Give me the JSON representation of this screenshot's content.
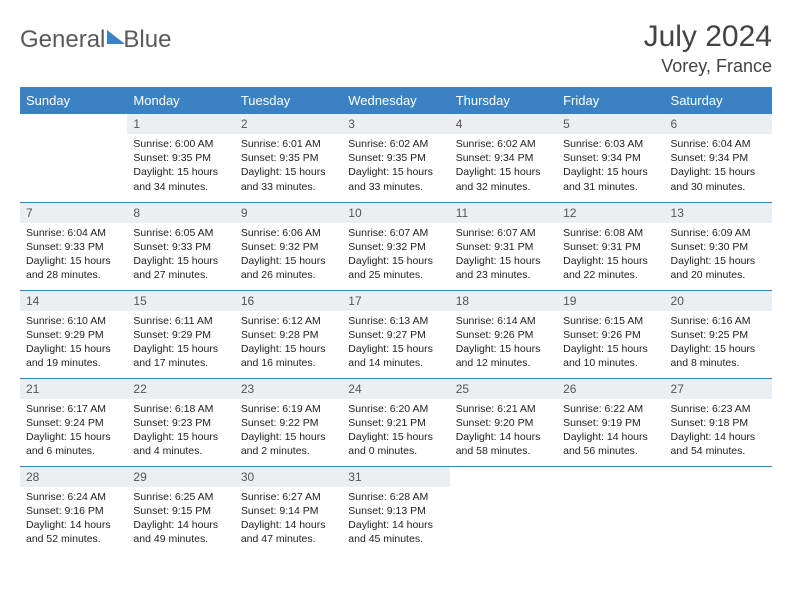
{
  "brand": {
    "word1": "General",
    "word2": "Blue"
  },
  "title": "July 2024",
  "location": "Vorey, France",
  "colors": {
    "header_bg": "#3b82c4",
    "header_fg": "#ffffff",
    "daynum_bg": "#eceff1",
    "rule": "#3b82c4",
    "text": "#222222",
    "page_bg": "#ffffff"
  },
  "weekdays": [
    "Sunday",
    "Monday",
    "Tuesday",
    "Wednesday",
    "Thursday",
    "Friday",
    "Saturday"
  ],
  "cells": [
    [
      "",
      "1",
      "2",
      "3",
      "4",
      "5",
      "6"
    ],
    [
      "7",
      "8",
      "9",
      "10",
      "11",
      "12",
      "13"
    ],
    [
      "14",
      "15",
      "16",
      "17",
      "18",
      "19",
      "20"
    ],
    [
      "21",
      "22",
      "23",
      "24",
      "25",
      "26",
      "27"
    ],
    [
      "28",
      "29",
      "30",
      "31",
      "",
      "",
      ""
    ]
  ],
  "details": {
    "1": {
      "sunrise": "Sunrise: 6:00 AM",
      "sunset": "Sunset: 9:35 PM",
      "day1": "Daylight: 15 hours",
      "day2": "and 34 minutes."
    },
    "2": {
      "sunrise": "Sunrise: 6:01 AM",
      "sunset": "Sunset: 9:35 PM",
      "day1": "Daylight: 15 hours",
      "day2": "and 33 minutes."
    },
    "3": {
      "sunrise": "Sunrise: 6:02 AM",
      "sunset": "Sunset: 9:35 PM",
      "day1": "Daylight: 15 hours",
      "day2": "and 33 minutes."
    },
    "4": {
      "sunrise": "Sunrise: 6:02 AM",
      "sunset": "Sunset: 9:34 PM",
      "day1": "Daylight: 15 hours",
      "day2": "and 32 minutes."
    },
    "5": {
      "sunrise": "Sunrise: 6:03 AM",
      "sunset": "Sunset: 9:34 PM",
      "day1": "Daylight: 15 hours",
      "day2": "and 31 minutes."
    },
    "6": {
      "sunrise": "Sunrise: 6:04 AM",
      "sunset": "Sunset: 9:34 PM",
      "day1": "Daylight: 15 hours",
      "day2": "and 30 minutes."
    },
    "7": {
      "sunrise": "Sunrise: 6:04 AM",
      "sunset": "Sunset: 9:33 PM",
      "day1": "Daylight: 15 hours",
      "day2": "and 28 minutes."
    },
    "8": {
      "sunrise": "Sunrise: 6:05 AM",
      "sunset": "Sunset: 9:33 PM",
      "day1": "Daylight: 15 hours",
      "day2": "and 27 minutes."
    },
    "9": {
      "sunrise": "Sunrise: 6:06 AM",
      "sunset": "Sunset: 9:32 PM",
      "day1": "Daylight: 15 hours",
      "day2": "and 26 minutes."
    },
    "10": {
      "sunrise": "Sunrise: 6:07 AM",
      "sunset": "Sunset: 9:32 PM",
      "day1": "Daylight: 15 hours",
      "day2": "and 25 minutes."
    },
    "11": {
      "sunrise": "Sunrise: 6:07 AM",
      "sunset": "Sunset: 9:31 PM",
      "day1": "Daylight: 15 hours",
      "day2": "and 23 minutes."
    },
    "12": {
      "sunrise": "Sunrise: 6:08 AM",
      "sunset": "Sunset: 9:31 PM",
      "day1": "Daylight: 15 hours",
      "day2": "and 22 minutes."
    },
    "13": {
      "sunrise": "Sunrise: 6:09 AM",
      "sunset": "Sunset: 9:30 PM",
      "day1": "Daylight: 15 hours",
      "day2": "and 20 minutes."
    },
    "14": {
      "sunrise": "Sunrise: 6:10 AM",
      "sunset": "Sunset: 9:29 PM",
      "day1": "Daylight: 15 hours",
      "day2": "and 19 minutes."
    },
    "15": {
      "sunrise": "Sunrise: 6:11 AM",
      "sunset": "Sunset: 9:29 PM",
      "day1": "Daylight: 15 hours",
      "day2": "and 17 minutes."
    },
    "16": {
      "sunrise": "Sunrise: 6:12 AM",
      "sunset": "Sunset: 9:28 PM",
      "day1": "Daylight: 15 hours",
      "day2": "and 16 minutes."
    },
    "17": {
      "sunrise": "Sunrise: 6:13 AM",
      "sunset": "Sunset: 9:27 PM",
      "day1": "Daylight: 15 hours",
      "day2": "and 14 minutes."
    },
    "18": {
      "sunrise": "Sunrise: 6:14 AM",
      "sunset": "Sunset: 9:26 PM",
      "day1": "Daylight: 15 hours",
      "day2": "and 12 minutes."
    },
    "19": {
      "sunrise": "Sunrise: 6:15 AM",
      "sunset": "Sunset: 9:26 PM",
      "day1": "Daylight: 15 hours",
      "day2": "and 10 minutes."
    },
    "20": {
      "sunrise": "Sunrise: 6:16 AM",
      "sunset": "Sunset: 9:25 PM",
      "day1": "Daylight: 15 hours",
      "day2": "and 8 minutes."
    },
    "21": {
      "sunrise": "Sunrise: 6:17 AM",
      "sunset": "Sunset: 9:24 PM",
      "day1": "Daylight: 15 hours",
      "day2": "and 6 minutes."
    },
    "22": {
      "sunrise": "Sunrise: 6:18 AM",
      "sunset": "Sunset: 9:23 PM",
      "day1": "Daylight: 15 hours",
      "day2": "and 4 minutes."
    },
    "23": {
      "sunrise": "Sunrise: 6:19 AM",
      "sunset": "Sunset: 9:22 PM",
      "day1": "Daylight: 15 hours",
      "day2": "and 2 minutes."
    },
    "24": {
      "sunrise": "Sunrise: 6:20 AM",
      "sunset": "Sunset: 9:21 PM",
      "day1": "Daylight: 15 hours",
      "day2": "and 0 minutes."
    },
    "25": {
      "sunrise": "Sunrise: 6:21 AM",
      "sunset": "Sunset: 9:20 PM",
      "day1": "Daylight: 14 hours",
      "day2": "and 58 minutes."
    },
    "26": {
      "sunrise": "Sunrise: 6:22 AM",
      "sunset": "Sunset: 9:19 PM",
      "day1": "Daylight: 14 hours",
      "day2": "and 56 minutes."
    },
    "27": {
      "sunrise": "Sunrise: 6:23 AM",
      "sunset": "Sunset: 9:18 PM",
      "day1": "Daylight: 14 hours",
      "day2": "and 54 minutes."
    },
    "28": {
      "sunrise": "Sunrise: 6:24 AM",
      "sunset": "Sunset: 9:16 PM",
      "day1": "Daylight: 14 hours",
      "day2": "and 52 minutes."
    },
    "29": {
      "sunrise": "Sunrise: 6:25 AM",
      "sunset": "Sunset: 9:15 PM",
      "day1": "Daylight: 14 hours",
      "day2": "and 49 minutes."
    },
    "30": {
      "sunrise": "Sunrise: 6:27 AM",
      "sunset": "Sunset: 9:14 PM",
      "day1": "Daylight: 14 hours",
      "day2": "and 47 minutes."
    },
    "31": {
      "sunrise": "Sunrise: 6:28 AM",
      "sunset": "Sunset: 9:13 PM",
      "day1": "Daylight: 14 hours",
      "day2": "and 45 minutes."
    }
  }
}
